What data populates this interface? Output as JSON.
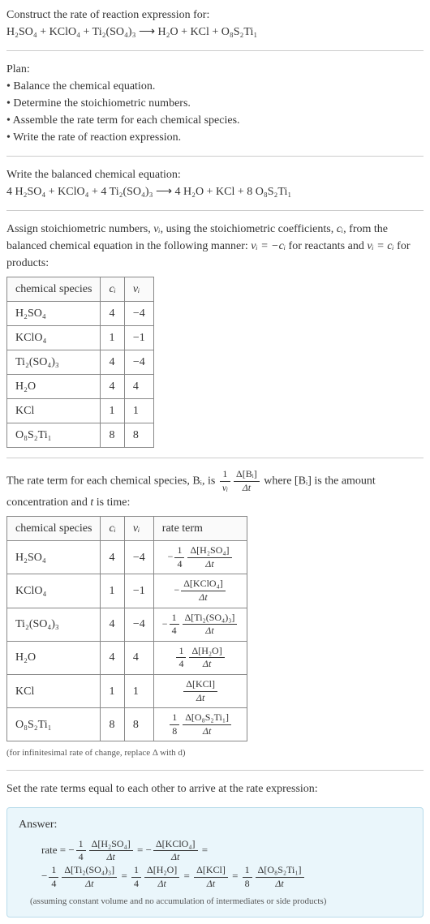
{
  "intro": {
    "prompt": "Construct the rate of reaction expression for:",
    "lhs": "H₂SO₄ + KClO₄ + Ti₂(SO₄)₃",
    "arrow": "⟶",
    "rhs": "H₂O + KCl + O₈S₂Ti₁"
  },
  "plan": {
    "heading": "Plan:",
    "items": [
      "Balance the chemical equation.",
      "Determine the stoichiometric numbers.",
      "Assemble the rate term for each chemical species.",
      "Write the rate of reaction expression."
    ]
  },
  "balanced": {
    "heading": "Write the balanced chemical equation:",
    "lhs": "4 H₂SO₄ + KClO₄ + 4 Ti₂(SO₄)₃",
    "arrow": "⟶",
    "rhs": "4 H₂O + KCl + 8 O₈S₂Ti₁"
  },
  "assign": {
    "line1a": "Assign stoichiometric numbers, ",
    "nu_i": "νᵢ",
    "line1b": ", using the stoichiometric coefficients, ",
    "c_i": "cᵢ",
    "line1c": ", from the balanced chemical equation in the following manner: ",
    "rel_reac": "νᵢ = −cᵢ",
    "line2a": " for reactants and ",
    "rel_prod": "νᵢ = cᵢ",
    "line2b": " for products:"
  },
  "stoich_table": {
    "headers": [
      "chemical species",
      "cᵢ",
      "νᵢ"
    ],
    "rows": [
      [
        "H₂SO₄",
        "4",
        "−4"
      ],
      [
        "KClO₄",
        "1",
        "−1"
      ],
      [
        "Ti₂(SO₄)₃",
        "4",
        "−4"
      ],
      [
        "H₂O",
        "4",
        "4"
      ],
      [
        "KCl",
        "1",
        "1"
      ],
      [
        "O₈S₂Ti₁",
        "8",
        "8"
      ]
    ]
  },
  "rate_intro": {
    "a": "The rate term for each chemical species, ",
    "b": "Bᵢ",
    "c": ", is ",
    "frac1_num": "1",
    "frac1_den": "νᵢ",
    "frac2_num": "Δ[Bᵢ]",
    "frac2_den": "Δt",
    "d": " where [Bᵢ] is the amount concentration and ",
    "t": "t",
    "e": " is time:"
  },
  "rate_table": {
    "headers": [
      "chemical species",
      "cᵢ",
      "νᵢ",
      "rate term"
    ],
    "rows": [
      {
        "sp": "H₂SO₄",
        "c": "4",
        "nu": "−4",
        "prefix": "−",
        "coef_num": "1",
        "coef_den": "4",
        "bracket": "Δ[H₂SO₄]"
      },
      {
        "sp": "KClO₄",
        "c": "1",
        "nu": "−1",
        "prefix": "−",
        "coef_num": "",
        "coef_den": "",
        "bracket": "Δ[KClO₄]"
      },
      {
        "sp": "Ti₂(SO₄)₃",
        "c": "4",
        "nu": "−4",
        "prefix": "−",
        "coef_num": "1",
        "coef_den": "4",
        "bracket": "Δ[Ti₂(SO₄)₃]"
      },
      {
        "sp": "H₂O",
        "c": "4",
        "nu": "4",
        "prefix": "",
        "coef_num": "1",
        "coef_den": "4",
        "bracket": "Δ[H₂O]"
      },
      {
        "sp": "KCl",
        "c": "1",
        "nu": "1",
        "prefix": "",
        "coef_num": "",
        "coef_den": "",
        "bracket": "Δ[KCl]"
      },
      {
        "sp": "O₈S₂Ti₁",
        "c": "8",
        "nu": "8",
        "prefix": "",
        "coef_num": "1",
        "coef_den": "8",
        "bracket": "Δ[O₈S₂Ti₁]"
      }
    ],
    "dt": "Δt",
    "note": "(for infinitesimal rate of change, replace Δ with d)"
  },
  "set_equal": "Set the rate terms equal to each other to arrive at the rate expression:",
  "answer": {
    "label": "Answer:",
    "rate_eq": "rate = ",
    "terms": [
      {
        "prefix": "−",
        "coef_num": "1",
        "coef_den": "4",
        "bracket": "Δ[H₂SO₄]"
      },
      {
        "prefix": "−",
        "coef_num": "",
        "coef_den": "",
        "bracket": "Δ[KClO₄]"
      },
      {
        "prefix": "−",
        "coef_num": "1",
        "coef_den": "4",
        "bracket": "Δ[Ti₂(SO₄)₃]"
      },
      {
        "prefix": "",
        "coef_num": "1",
        "coef_den": "4",
        "bracket": "Δ[H₂O]"
      },
      {
        "prefix": "",
        "coef_num": "",
        "coef_den": "",
        "bracket": "Δ[KCl]"
      },
      {
        "prefix": "",
        "coef_num": "1",
        "coef_den": "8",
        "bracket": "Δ[O₈S₂Ti₁]"
      }
    ],
    "dt": "Δt",
    "eq": " = ",
    "note": "(assuming constant volume and no accumulation of intermediates or side products)"
  },
  "colors": {
    "text": "#333333",
    "rule": "#cccccc",
    "table_border": "#888888",
    "answer_bg": "#eaf6fb",
    "answer_border": "#b9dceb",
    "note": "#555555"
  }
}
